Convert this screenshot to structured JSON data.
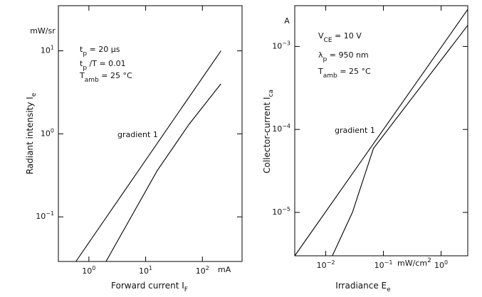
{
  "chart_data": [
    {
      "type": "line",
      "xlog": true,
      "ylog": true,
      "xlim": [
        0.29,
        500
      ],
      "ylim": [
        0.029,
        35
      ],
      "xticks": [
        {
          "value": 1,
          "label": "10",
          "exp": "0"
        },
        {
          "value": 10,
          "label": "10",
          "exp": "1"
        },
        {
          "value": 100,
          "label": "10",
          "exp": "2"
        }
      ],
      "yticks": [
        {
          "value": 0.1,
          "label": "10",
          "exp": "−1"
        },
        {
          "value": 1,
          "label": "10",
          "exp": "0"
        },
        {
          "value": 10,
          "label": "10",
          "exp": "1"
        }
      ],
      "x_label": [
        {
          "text": "Forward current I"
        },
        {
          "text": "F",
          "shift": "sub"
        }
      ],
      "y_label": [
        {
          "text": "Radiant intensity I"
        },
        {
          "text": "e",
          "shift": "sub"
        }
      ],
      "x_unit": "mA",
      "y_unit": "mW/sr",
      "annotations": [
        [
          {
            "text": "t"
          },
          {
            "text": "p",
            "shift": "sub"
          },
          {
            "text": " = 20 µs"
          }
        ],
        [
          {
            "text": "t"
          },
          {
            "text": "p",
            "shift": "sub"
          },
          {
            "text": " /T = 0.01"
          }
        ],
        [
          {
            "text": "T"
          },
          {
            "text": "amb",
            "shift": "sub"
          },
          {
            "text": " = 25 °C"
          }
        ],
        [
          {
            "text": "gradient  1"
          }
        ]
      ],
      "series": [
        {
          "color": "#000000",
          "x": [
            0.59,
            212
          ],
          "values": [
            0.029,
            10
          ]
        },
        {
          "color": "#000000",
          "x": [
            2.0,
            16,
            58,
            212
          ],
          "values": [
            0.029,
            0.36,
            1.3,
            4
          ]
        }
      ]
    },
    {
      "type": "line",
      "xlog": true,
      "ylog": true,
      "xlim": [
        0.0029,
        2.9
      ],
      "ylim": [
        3e-06,
        0.0031
      ],
      "xticks": [
        {
          "value": 0.01,
          "label": "10",
          "exp": "−2"
        },
        {
          "value": 0.1,
          "label": "10",
          "exp": "−1"
        },
        {
          "value": 1,
          "label": "10",
          "exp": "0"
        }
      ],
      "yticks": [
        {
          "value": 1e-05,
          "label": "10",
          "exp": "−5"
        },
        {
          "value": 0.0001,
          "label": "10",
          "exp": "−4"
        },
        {
          "value": 0.001,
          "label": "10",
          "exp": "−3"
        }
      ],
      "x_label": [
        {
          "text": "Irradiance E"
        },
        {
          "text": "e",
          "shift": "sub"
        }
      ],
      "y_label": [
        {
          "text": "Collector-current I"
        },
        {
          "text": "ca",
          "shift": "sub"
        }
      ],
      "x_unit": [
        {
          "text": "mW/cm"
        },
        {
          "text": "2",
          "shift": "super"
        }
      ],
      "y_unit": "A",
      "annotations": [
        [
          {
            "text": "V"
          },
          {
            "text": "CE",
            "shift": "sub"
          },
          {
            "text": " = 10 V"
          }
        ],
        [
          {
            "text": "λ"
          },
          {
            "text": "p",
            "shift": "sub"
          },
          {
            "text": " = 950 nm"
          }
        ],
        [
          {
            "text": "T"
          },
          {
            "text": "amb",
            "shift": "sub"
          },
          {
            "text": " = 25 °C"
          }
        ],
        [
          {
            "text": "gradient  1"
          }
        ]
      ],
      "series": [
        {
          "color": "#000000",
          "x": [
            0.0029,
            2.9
          ],
          "values": [
            3e-06,
            0.0028
          ]
        },
        {
          "color": "#000000",
          "x": [
            0.013,
            0.029,
            0.067,
            2.9
          ],
          "values": [
            3e-06,
            1e-05,
            5.9e-05,
            0.0018
          ]
        }
      ]
    }
  ]
}
